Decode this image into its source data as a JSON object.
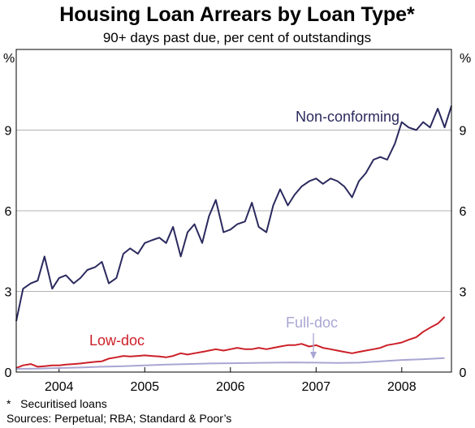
{
  "chart_data": {
    "type": "line",
    "title": "Housing Loan Arrears by Loan Type*",
    "subtitle": "90+ days past due, per cent of outstandings",
    "yunit_left": "%",
    "yunit_right": "%",
    "ylim": [
      0,
      12
    ],
    "yticks": [
      0,
      3,
      6,
      9
    ],
    "yticklabels": [
      "0",
      "3",
      "6",
      "9"
    ],
    "xlim": [
      2003.5,
      2008.58
    ],
    "xticklabels": [
      "2004",
      "2005",
      "2006",
      "2007",
      "2008"
    ],
    "xtick_centers": [
      2004.0,
      2005.0,
      2006.0,
      2007.0,
      2008.0
    ],
    "grid": true,
    "series": [
      {
        "name": "Non-conforming",
        "color": "#2b2a5e",
        "x": [
          2003.5,
          2003.58,
          2003.67,
          2003.75,
          2003.83,
          2003.92,
          2004.0,
          2004.08,
          2004.17,
          2004.25,
          2004.33,
          2004.42,
          2004.5,
          2004.58,
          2004.67,
          2004.75,
          2004.83,
          2004.92,
          2005.0,
          2005.08,
          2005.17,
          2005.25,
          2005.33,
          2005.42,
          2005.5,
          2005.58,
          2005.67,
          2005.75,
          2005.83,
          2005.92,
          2006.0,
          2006.08,
          2006.17,
          2006.25,
          2006.33,
          2006.42,
          2006.5,
          2006.58,
          2006.67,
          2006.75,
          2006.83,
          2006.92,
          2007.0,
          2007.08,
          2007.17,
          2007.25,
          2007.33,
          2007.42,
          2007.5,
          2007.58,
          2007.67,
          2007.75,
          2007.83,
          2007.92,
          2008.0,
          2008.08,
          2008.17,
          2008.25,
          2008.33,
          2008.42,
          2008.5,
          2008.58
        ],
        "y": [
          1.9,
          3.1,
          3.3,
          3.4,
          4.3,
          3.1,
          3.5,
          3.6,
          3.3,
          3.5,
          3.8,
          3.9,
          4.1,
          3.3,
          3.5,
          4.4,
          4.6,
          4.4,
          4.8,
          4.9,
          5.0,
          4.8,
          5.4,
          4.3,
          5.2,
          5.5,
          4.8,
          5.8,
          6.4,
          5.2,
          5.3,
          5.5,
          5.6,
          6.3,
          5.4,
          5.2,
          6.2,
          6.8,
          6.2,
          6.6,
          6.9,
          7.1,
          7.2,
          7.0,
          7.2,
          7.1,
          6.9,
          6.5,
          7.1,
          7.4,
          7.9,
          8.0,
          7.9,
          8.5,
          9.3,
          9.1,
          9.0,
          9.3,
          9.1,
          9.8,
          9.1,
          9.9
        ]
      },
      {
        "name": "Low-doc",
        "color": "#cc2028",
        "x": [
          2003.5,
          2003.58,
          2003.67,
          2003.75,
          2003.83,
          2003.92,
          2004.0,
          2004.08,
          2004.17,
          2004.25,
          2004.33,
          2004.42,
          2004.5,
          2004.58,
          2004.67,
          2004.75,
          2004.83,
          2004.92,
          2005.0,
          2005.08,
          2005.17,
          2005.25,
          2005.33,
          2005.42,
          2005.5,
          2005.58,
          2005.67,
          2005.75,
          2005.83,
          2005.92,
          2006.0,
          2006.08,
          2006.17,
          2006.25,
          2006.33,
          2006.42,
          2006.5,
          2006.58,
          2006.67,
          2006.75,
          2006.83,
          2006.92,
          2007.0,
          2007.08,
          2007.17,
          2007.25,
          2007.33,
          2007.42,
          2007.5,
          2007.58,
          2007.67,
          2007.75,
          2007.83,
          2007.92,
          2008.0,
          2008.08,
          2008.17,
          2008.25,
          2008.33,
          2008.42,
          2008.5
        ],
        "y": [
          0.15,
          0.25,
          0.3,
          0.2,
          0.22,
          0.25,
          0.25,
          0.28,
          0.3,
          0.32,
          0.35,
          0.38,
          0.4,
          0.5,
          0.55,
          0.6,
          0.58,
          0.6,
          0.62,
          0.6,
          0.58,
          0.55,
          0.6,
          0.7,
          0.65,
          0.7,
          0.75,
          0.8,
          0.85,
          0.8,
          0.85,
          0.9,
          0.85,
          0.85,
          0.9,
          0.85,
          0.9,
          0.95,
          1.0,
          1.0,
          1.05,
          0.95,
          1.0,
          0.9,
          0.85,
          0.8,
          0.75,
          0.7,
          0.75,
          0.8,
          0.85,
          0.9,
          1.0,
          1.05,
          1.1,
          1.2,
          1.3,
          1.5,
          1.65,
          1.8,
          2.05
        ]
      },
      {
        "name": "Full-doc",
        "color": "#a9a6d3",
        "x": [
          2003.5,
          2003.75,
          2004.0,
          2004.25,
          2004.5,
          2004.75,
          2005.0,
          2005.25,
          2005.5,
          2005.75,
          2006.0,
          2006.25,
          2006.5,
          2006.75,
          2007.0,
          2007.25,
          2007.5,
          2007.75,
          2008.0,
          2008.25,
          2008.5
        ],
        "y": [
          0.12,
          0.13,
          0.15,
          0.17,
          0.2,
          0.22,
          0.25,
          0.28,
          0.3,
          0.32,
          0.33,
          0.34,
          0.35,
          0.36,
          0.35,
          0.34,
          0.35,
          0.4,
          0.45,
          0.48,
          0.52
        ]
      }
    ],
    "annotations": {
      "nonconforming_label": "Non-conforming",
      "lowdoc_label": "Low-doc",
      "fulldoc_label": "Full-doc"
    }
  },
  "footnotes": {
    "note": "*   Securitised loans",
    "sources": "Sources: Perpetual; RBA; Standard & Poor’s"
  }
}
